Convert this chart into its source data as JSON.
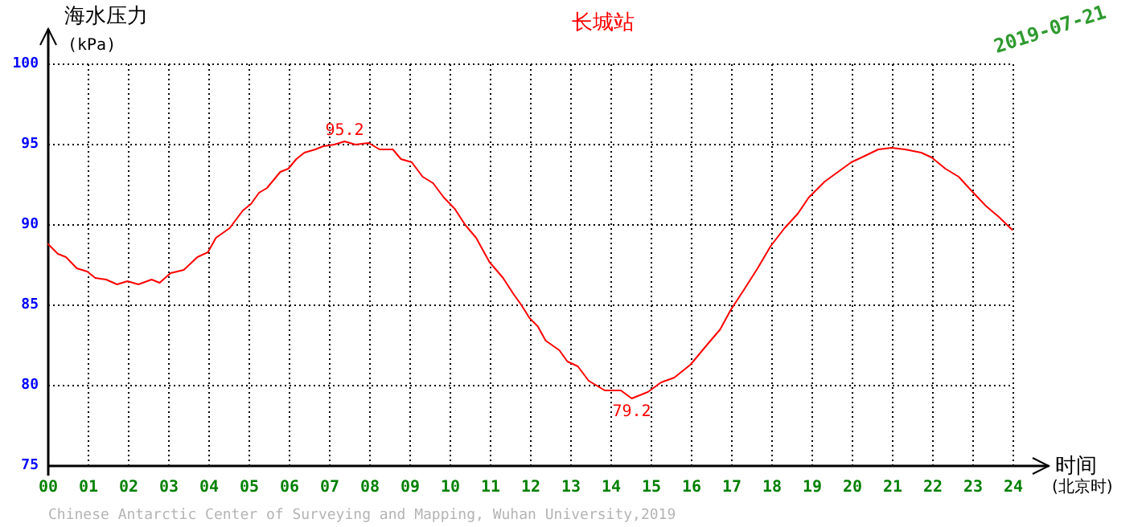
{
  "chart_data": {
    "type": "line",
    "title": "长城站",
    "subtitle": "2019-07-21",
    "xlabel": "时间",
    "ylabel": "海水压力",
    "annotations": [
      "(kPa)",
      "(北京时)",
      "Chinese Antarctic Center of Surveying and Mapping, Wuhan University,2019",
      {
        "text": "95.2",
        "x": 7.37,
        "y": 95.2
      },
      {
        "text": "79.2",
        "x": 14.51,
        "y": 79.2
      }
    ],
    "x": [
      0,
      0.24,
      0.44,
      0.71,
      0.97,
      1.17,
      1.44,
      1.71,
      1.97,
      2.24,
      2.57,
      2.77,
      3.04,
      3.37,
      3.71,
      3.97,
      4.17,
      4.51,
      4.84,
      5.04,
      5.24,
      5.44,
      5.77,
      5.97,
      6.17,
      6.37,
      6.64,
      6.84,
      7.11,
      7.37,
      7.64,
      7.97,
      8.24,
      8.57,
      8.77,
      9.04,
      9.31,
      9.57,
      9.84,
      10.11,
      10.37,
      10.64,
      10.97,
      11.31,
      11.57,
      11.77,
      11.97,
      12.17,
      12.37,
      12.71,
      12.91,
      13.17,
      13.44,
      13.84,
      14.24,
      14.51,
      14.91,
      15.24,
      15.57,
      15.97,
      16.37,
      16.71,
      16.97,
      17.31,
      17.64,
      17.97,
      18.31,
      18.64,
      18.91,
      19.31,
      19.64,
      19.97,
      20.31,
      20.64,
      20.97,
      21.31,
      21.71,
      21.97,
      22.31,
      22.64,
      22.97,
      23.31,
      23.64,
      23.97
    ],
    "series": [
      {
        "color": "#ff0000",
        "values": [
          88.8,
          88.2,
          88.0,
          87.3,
          87.1,
          86.7,
          86.6,
          86.3,
          86.5,
          86.3,
          86.6,
          86.4,
          87.0,
          87.2,
          88.0,
          88.3,
          89.2,
          89.8,
          90.9,
          91.3,
          92.0,
          92.3,
          93.3,
          93.5,
          94.1,
          94.5,
          94.7,
          94.9,
          95.0,
          95.2,
          95.0,
          95.1,
          94.7,
          94.7,
          94.1,
          93.9,
          93.0,
          92.6,
          91.7,
          91.0,
          90.0,
          89.2,
          87.7,
          86.7,
          85.7,
          85.0,
          84.2,
          83.7,
          82.8,
          82.2,
          81.5,
          81.2,
          80.3,
          79.7,
          79.7,
          79.2,
          79.6,
          80.2,
          80.5,
          81.3,
          82.5,
          83.5,
          84.7,
          86.0,
          87.3,
          88.7,
          89.8,
          90.7,
          91.7,
          92.7,
          93.3,
          93.9,
          94.3,
          94.7,
          94.8,
          94.7,
          94.5,
          94.2,
          93.5,
          93.0,
          92.1,
          91.2,
          90.5,
          89.7
        ]
      }
    ],
    "xlim": [
      0,
      24
    ],
    "ylim": [
      75,
      100
    ],
    "xticks": [
      {
        "value": 0,
        "label": "00"
      },
      {
        "value": 1,
        "label": "01"
      },
      {
        "value": 2,
        "label": "02"
      },
      {
        "value": 3,
        "label": "03"
      },
      {
        "value": 4,
        "label": "04"
      },
      {
        "value": 5,
        "label": "05"
      },
      {
        "value": 6,
        "label": "06"
      },
      {
        "value": 7,
        "label": "07"
      },
      {
        "value": 8,
        "label": "08"
      },
      {
        "value": 9,
        "label": "09"
      },
      {
        "value": 10,
        "label": "10"
      },
      {
        "value": 11,
        "label": "11"
      },
      {
        "value": 12,
        "label": "12"
      },
      {
        "value": 13,
        "label": "13"
      },
      {
        "value": 14,
        "label": "14"
      },
      {
        "value": 15,
        "label": "15"
      },
      {
        "value": 16,
        "label": "16"
      },
      {
        "value": 17,
        "label": "17"
      },
      {
        "value": 18,
        "label": "18"
      },
      {
        "value": 19,
        "label": "19"
      },
      {
        "value": 20,
        "label": "20"
      },
      {
        "value": 21,
        "label": "21"
      },
      {
        "value": 22,
        "label": "22"
      },
      {
        "value": 23,
        "label": "23"
      },
      {
        "value": 24,
        "label": "24"
      }
    ],
    "yticks": [
      75,
      80,
      85,
      90,
      95,
      100
    ],
    "grid": true,
    "marker": "none",
    "line_style": "solid"
  }
}
